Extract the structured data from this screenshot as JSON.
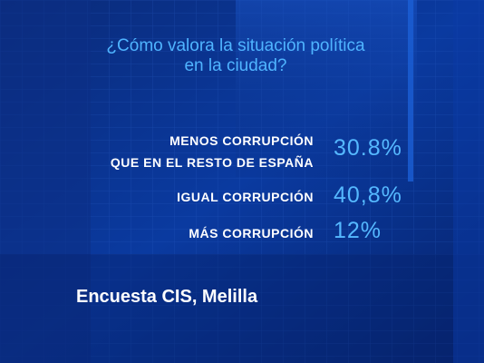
{
  "question": {
    "line1": "¿Cómo valora la situación política",
    "line2": "en la ciudad?"
  },
  "results": [
    {
      "label_line1": "MENOS CORRUPCIÓN",
      "label_line2": "QUE EN EL RESTO DE ESPAÑA",
      "value": "30.8%"
    },
    {
      "label_line1": "IGUAL CORRUPCIÓN",
      "value": "40,8%"
    },
    {
      "label_line1": "MÁS CORRUPCIÓN",
      "value": "12%"
    }
  ],
  "source": "Encuesta CIS, Melilla",
  "colors": {
    "background": "#041a52",
    "question_text": "#4fb4ff",
    "value_text": "#55b8ff",
    "label_text": "#ffffff"
  }
}
